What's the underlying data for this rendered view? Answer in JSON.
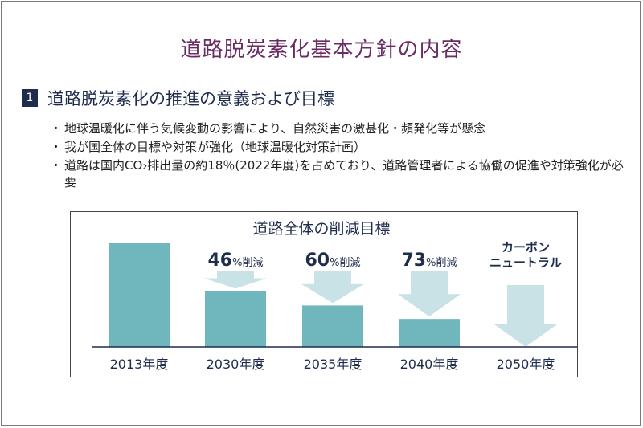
{
  "slide": {
    "title": "道路脱炭素化基本方針の内容",
    "section_number": "1",
    "section_heading": "道路脱炭素化の推進の意義および目標",
    "bullet_marker": "・",
    "bullets": [
      "地球温暖化に伴う気候変動の影響により、自然災害の激甚化・頻発化等が懸念",
      "我が国全体の目標や対策が強化（地球温暖化対策計画）",
      "道路は国内CO₂排出量の約18％(2022年度)を占めており、道路管理者による協働の促進や対策強化が必要"
    ]
  },
  "chart_data": {
    "type": "bar",
    "title": "道路全体の削減目標",
    "categories": [
      "2013年度",
      "2030年度",
      "2035年度",
      "2040年度",
      "2050年度"
    ],
    "values": [
      100,
      54,
      40,
      27,
      0
    ],
    "reduction_labels": [
      null,
      {
        "number": "46",
        "unit": "%削減"
      },
      {
        "number": "60",
        "unit": "%削減"
      },
      {
        "number": "73",
        "unit": "%削減"
      },
      null
    ],
    "final_label": [
      "カーボン",
      "ニュートラル"
    ],
    "ylim": [
      0,
      100
    ],
    "colors": {
      "bar": "#6fb6bd",
      "arrow": "#c9e2e6",
      "text": "#1f2d4d"
    }
  }
}
